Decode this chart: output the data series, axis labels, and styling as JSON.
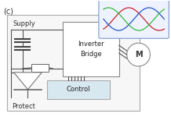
{
  "bg_color": "#ffffff",
  "label_c": "(c)",
  "supply_text": "Supply",
  "protect_text": "Protect",
  "inverter_text": "Inverter\nBridge",
  "control_text": "Control",
  "motor_text": "M",
  "wave_colors": [
    "#cc2222",
    "#2255cc",
    "#33bb33"
  ],
  "font_size_label": 7,
  "font_size_text": 6.0,
  "font_size_motor": 7
}
